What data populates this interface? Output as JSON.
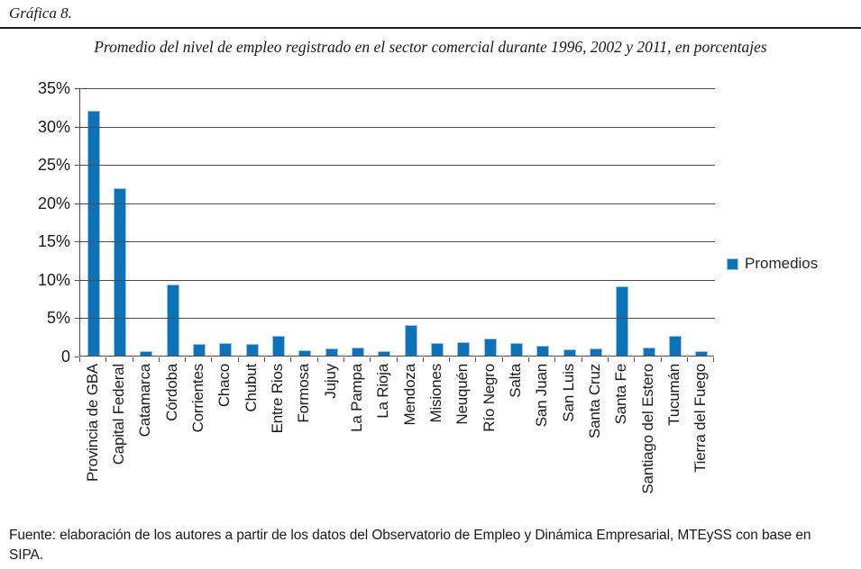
{
  "header": {
    "figure_label": "Gráfica 8."
  },
  "title": "Promedio del nivel de empleo registrado en el sector comercial durante 1996, 2002 y 2011, en porcentajes",
  "legend": {
    "label": "Promedios"
  },
  "footer": {
    "source": "Fuente: elaboración de los autores a partir de los datos del Observatorio de Empleo y Dinámica Empresarial, MTEySS con base en SIPA."
  },
  "colors": {
    "bar_fill": "#0e72b9",
    "bar_border": "#9dc3e6",
    "grid": "#4d4d4d"
  },
  "chart_data": {
    "type": "bar",
    "title": "Promedio del nivel de empleo registrado en el sector comercial durante 1996, 2002 y 2011, en porcentajes",
    "categories": [
      "Provincia de GBA",
      "Capital Federal",
      "Catamarca",
      "Córdoba",
      "Corrientes",
      "Chaco",
      "Chubut",
      "Entre Rios",
      "Formosa",
      "Jujuy",
      "La Pampa",
      "La Rioja",
      "Mendoza",
      "Misiones",
      "Neuquén",
      "Río Negro",
      "Salta",
      "San Juan",
      "San Luis",
      "Santa Cruz",
      "Santa Fe",
      "Santiago del Estero",
      "Tucumán",
      "Tierra del Fuego"
    ],
    "series": [
      {
        "name": "Promedios",
        "values": [
          32.0,
          21.8,
          0.6,
          9.3,
          1.5,
          1.7,
          1.5,
          2.6,
          0.7,
          0.9,
          1.0,
          0.6,
          4.0,
          1.6,
          1.8,
          2.2,
          1.6,
          1.3,
          0.8,
          0.9,
          9.1,
          1.1,
          2.6,
          0.6
        ]
      }
    ],
    "unit": "%",
    "xlabel": "",
    "ylabel": "",
    "ylim": [
      0,
      35
    ],
    "ytick_step": 5,
    "ytick_labels": [
      "35%",
      "30%",
      "25%",
      "20%",
      "15%",
      "10%",
      "5%",
      "0"
    ],
    "grid": true,
    "legend_position": "right"
  }
}
